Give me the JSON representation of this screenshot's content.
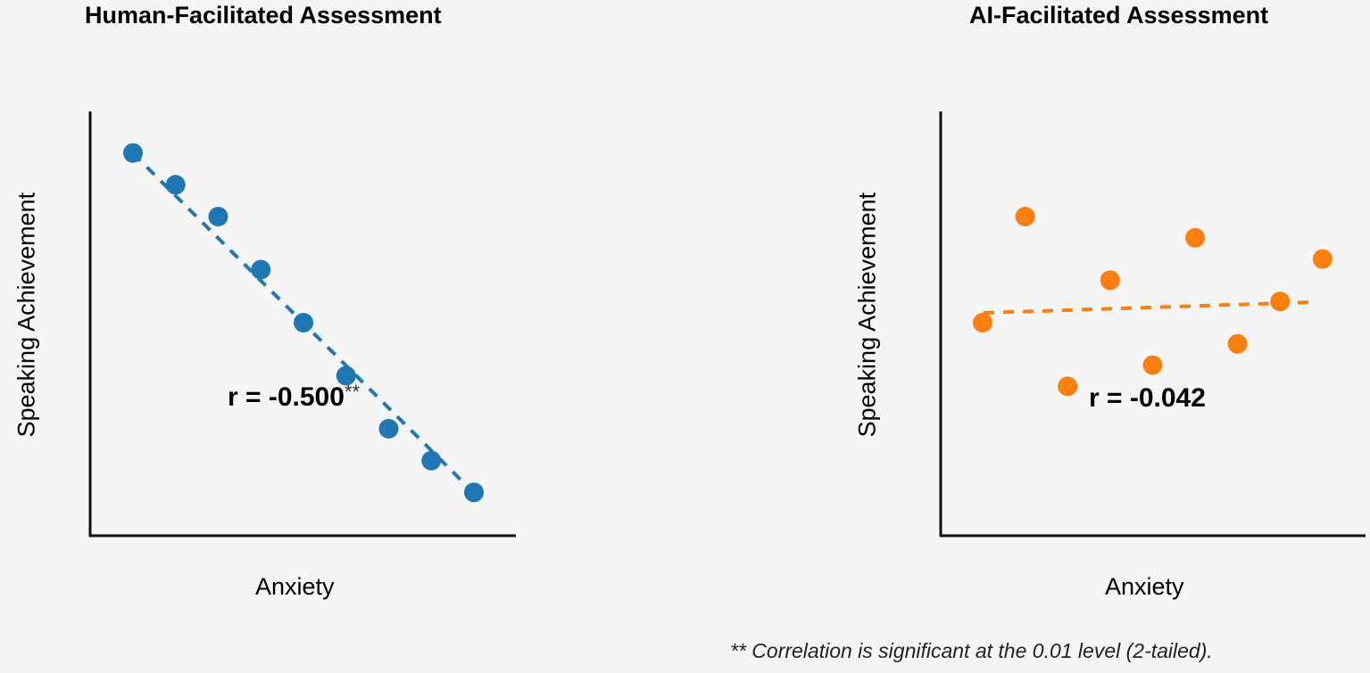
{
  "chart_data": [
    {
      "type": "scatter",
      "title": "Human-Facilitated Assessment",
      "xlabel": "Anxiety",
      "ylabel": "Speaking Achievement",
      "grid": false,
      "ticks": false,
      "color": "#1f77b4",
      "trendline": {
        "style": "dashed",
        "x": [
          1,
          9
        ],
        "y": [
          9.0,
          1.0
        ]
      },
      "annotation": "r = -0.500**",
      "r": -0.5,
      "significance": "**",
      "xlim": [
        0,
        10
      ],
      "ylim": [
        0,
        10
      ],
      "points": [
        {
          "x": 1,
          "y": 9.0
        },
        {
          "x": 2,
          "y": 8.25
        },
        {
          "x": 3,
          "y": 7.5
        },
        {
          "x": 4,
          "y": 6.25
        },
        {
          "x": 5,
          "y": 5.0
        },
        {
          "x": 6,
          "y": 3.75
        },
        {
          "x": 7,
          "y": 2.5
        },
        {
          "x": 8,
          "y": 1.75
        },
        {
          "x": 9,
          "y": 1.0
        }
      ]
    },
    {
      "type": "scatter",
      "title": "AI-Facilitated Assessment",
      "xlabel": "Anxiety",
      "ylabel": "Speaking Achievement",
      "grid": false,
      "ticks": false,
      "color": "#ff7f0e",
      "trendline": {
        "style": "dashed",
        "x": [
          1,
          8.75
        ],
        "y": [
          5.25,
          5.5
        ]
      },
      "annotation": "r = -0.042",
      "r": -0.042,
      "xlim": [
        0,
        10
      ],
      "ylim": [
        0,
        10
      ],
      "points": [
        {
          "x": 1,
          "y": 5.0
        },
        {
          "x": 2,
          "y": 7.5
        },
        {
          "x": 3,
          "y": 3.5
        },
        {
          "x": 4,
          "y": 6.0
        },
        {
          "x": 5,
          "y": 4.0
        },
        {
          "x": 6,
          "y": 7.0
        },
        {
          "x": 7,
          "y": 4.5
        },
        {
          "x": 8,
          "y": 5.5
        },
        {
          "x": 9,
          "y": 6.5
        }
      ]
    }
  ],
  "panels": {
    "left": {
      "title": "Human-Facilitated Assessment",
      "xlabel": "Anxiety",
      "ylabel": "Speaking Achievement",
      "r_label": "r = -0.500",
      "sig_marker": "**"
    },
    "right": {
      "title": "AI-Facilitated Assessment",
      "xlabel": "Anxiety",
      "ylabel": "Speaking Achievement",
      "r_label": "r = -0.042"
    }
  },
  "footnote": "** Correlation is significant at the 0.01 level (2-tailed)."
}
